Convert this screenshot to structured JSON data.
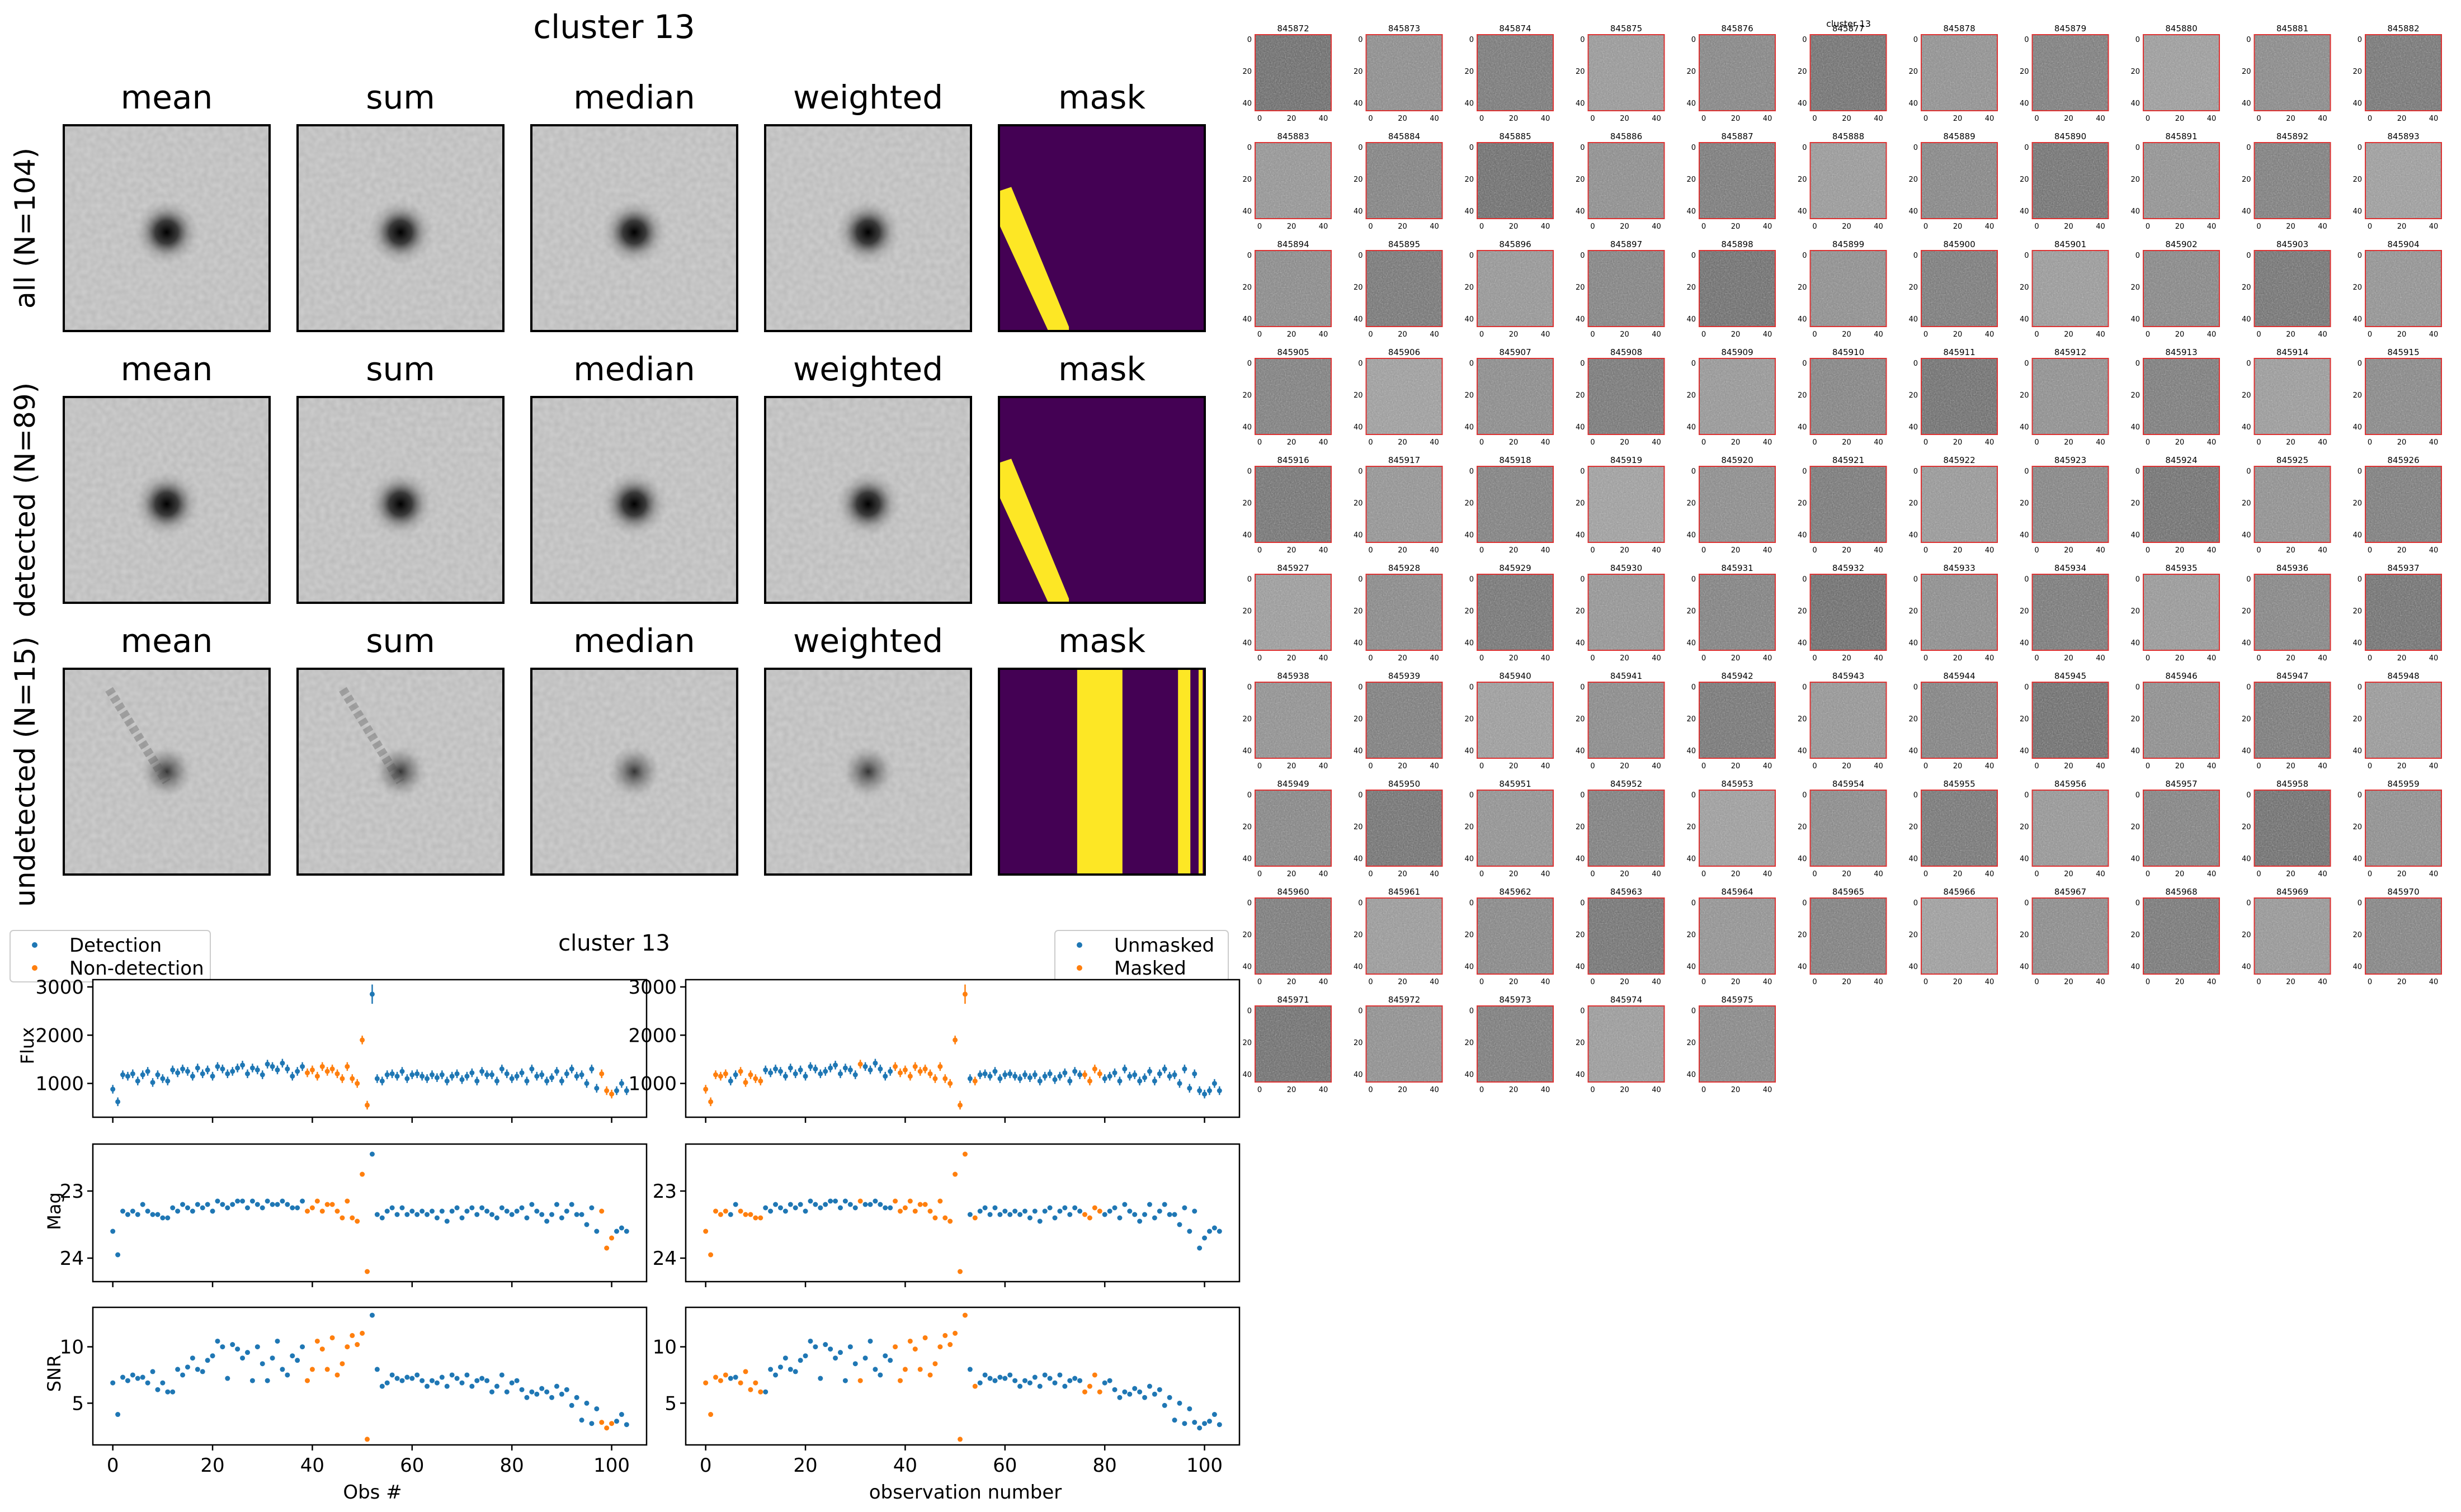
{
  "stamps": {
    "title": "cluster 13",
    "columns": [
      "mean",
      "sum",
      "median",
      "weighted",
      "mask"
    ],
    "rows": [
      {
        "label": "all (N=104)",
        "mask_bands": "diagonal"
      },
      {
        "label": "detected (N=89)",
        "mask_bands": "diagonal"
      },
      {
        "label": "undetected (N=15)",
        "mask_bands": [
          [
            0.38,
            0.6
          ],
          [
            0.87,
            0.93
          ],
          [
            0.97,
            0.99
          ]
        ]
      }
    ],
    "mask_colors": {
      "off": "#440154",
      "on": "#fde725"
    }
  },
  "lightcurve_title": "cluster 13",
  "grid": {
    "title": "cluster 13",
    "ids": [
      "845872",
      "845873",
      "845874",
      "845875",
      "845876",
      "845877",
      "845878",
      "845879",
      "845880",
      "845881",
      "845882",
      "845883",
      "845884",
      "845885",
      "845886",
      "845887",
      "845888",
      "845889",
      "845890",
      "845891",
      "845892",
      "845893",
      "845894",
      "845895",
      "845896",
      "845897",
      "845898",
      "845899",
      "845900",
      "845901",
      "845902",
      "845903",
      "845904",
      "845905",
      "845906",
      "845907",
      "845908",
      "845909",
      "845910",
      "845911",
      "845912",
      "845913",
      "845914",
      "845915",
      "845916",
      "845917",
      "845918",
      "845919",
      "845920",
      "845921",
      "845922",
      "845923",
      "845924",
      "845925",
      "845926",
      "845927",
      "845928",
      "845929",
      "845930",
      "845931",
      "845932",
      "845933",
      "845934",
      "845935",
      "845936",
      "845937",
      "845938",
      "845939",
      "845940",
      "845941",
      "845942",
      "845943",
      "845944",
      "845945",
      "845946",
      "845947",
      "845948",
      "845949",
      "845950",
      "845951",
      "845952",
      "845953",
      "845954",
      "845955",
      "845956",
      "845957",
      "845958",
      "845959",
      "845960",
      "845961",
      "845962",
      "845963",
      "845964",
      "845965",
      "845966",
      "845967",
      "845968",
      "845969",
      "845970",
      "845971",
      "845972",
      "845973",
      "845974",
      "845975"
    ],
    "y_ticks": [
      "0",
      "20",
      "40"
    ],
    "x_ticks": [
      "0",
      "20",
      "40"
    ]
  },
  "colors": {
    "blue": "#1f77b4",
    "orange": "#ff7f0e"
  },
  "chart_data": [
    {
      "type": "scatter",
      "name": "Flux vs observation (detection)",
      "ylabel": "Flux",
      "yticks": [
        1000,
        2000,
        3000
      ],
      "ylim": [
        300,
        3150
      ],
      "xlim": [
        -4,
        107
      ],
      "legend": {
        "entries": [
          "Detection",
          "Non-detection"
        ],
        "placement": "top-left outside"
      },
      "series_ref": "detection_split",
      "variable": "flux"
    },
    {
      "type": "scatter",
      "name": "Mag vs observation (detection)",
      "ylabel": "Mag",
      "yticks": [
        23,
        24
      ],
      "ylim": [
        24.35,
        22.3
      ],
      "inverted": true,
      "variable": "mag",
      "series_ref": "detection_split"
    },
    {
      "type": "scatter",
      "name": "SNR vs observation (detection)",
      "ylabel": "SNR",
      "xlabel": "Obs #",
      "yticks": [
        5,
        10
      ],
      "ylim": [
        1.3,
        13.5
      ],
      "xticks": [
        0,
        20,
        40,
        60,
        80,
        100
      ],
      "variable": "snr",
      "series_ref": "detection_split"
    },
    {
      "type": "scatter",
      "name": "Flux vs observation (mask)",
      "yticks": [
        1000,
        2000,
        3000
      ],
      "ylim": [
        300,
        3150
      ],
      "legend": {
        "entries": [
          "Unmasked",
          "Masked"
        ],
        "placement": "top-right outside"
      },
      "variable": "flux",
      "series_ref": "mask_split"
    },
    {
      "type": "scatter",
      "name": "Mag vs observation (mask)",
      "yticks": [
        23,
        24
      ],
      "ylim": [
        24.35,
        22.3
      ],
      "inverted": true,
      "variable": "mag",
      "series_ref": "mask_split"
    },
    {
      "type": "scatter",
      "name": "SNR vs observation (mask)",
      "xlabel": "observation number",
      "yticks": [
        5,
        10
      ],
      "ylim": [
        1.3,
        13.5
      ],
      "xticks": [
        0,
        20,
        40,
        60,
        80,
        100
      ],
      "variable": "snr",
      "series_ref": "mask_split"
    }
  ],
  "observations": {
    "x": [
      0,
      1,
      2,
      3,
      4,
      5,
      6,
      7,
      8,
      9,
      10,
      11,
      12,
      13,
      14,
      15,
      16,
      17,
      18,
      19,
      20,
      21,
      22,
      23,
      24,
      25,
      26,
      27,
      28,
      29,
      30,
      31,
      32,
      33,
      34,
      35,
      36,
      37,
      38,
      39,
      40,
      41,
      42,
      43,
      44,
      45,
      46,
      47,
      48,
      49,
      50,
      51,
      52,
      53,
      54,
      55,
      56,
      57,
      58,
      59,
      60,
      61,
      62,
      63,
      64,
      65,
      66,
      67,
      68,
      69,
      70,
      71,
      72,
      73,
      74,
      75,
      76,
      77,
      78,
      79,
      80,
      81,
      82,
      83,
      84,
      85,
      86,
      87,
      88,
      89,
      90,
      91,
      92,
      93,
      94,
      95,
      96,
      97,
      98,
      99,
      100,
      101,
      102,
      103
    ],
    "flux": [
      880,
      620,
      1180,
      1150,
      1200,
      1050,
      1180,
      1250,
      1020,
      1180,
      1100,
      1050,
      1280,
      1220,
      1300,
      1250,
      1150,
      1320,
      1200,
      1280,
      1150,
      1350,
      1300,
      1200,
      1250,
      1320,
      1380,
      1200,
      1320,
      1280,
      1180,
      1400,
      1350,
      1280,
      1420,
      1300,
      1150,
      1250,
      1350,
      1220,
      1280,
      1150,
      1350,
      1250,
      1300,
      1200,
      1100,
      1350,
      1100,
      1000,
      1900,
      550,
      2850,
      1100,
      1050,
      1180,
      1200,
      1150,
      1250,
      1100,
      1180,
      1200,
      1150,
      1100,
      1180,
      1120,
      1180,
      1050,
      1150,
      1200,
      1080,
      1150,
      1220,
      1050,
      1250,
      1180,
      1180,
      1050,
      1300,
      1200,
      1100,
      1150,
      1220,
      1050,
      1300,
      1150,
      1180,
      1050,
      1120,
      1250,
      1050,
      1200,
      1300,
      1150,
      1180,
      1000,
      1300,
      900,
      1200,
      850,
      780,
      850,
      1000,
      850
    ],
    "mag": [
      23.6,
      23.95,
      23.3,
      23.35,
      23.3,
      23.35,
      23.2,
      23.3,
      23.35,
      23.35,
      23.4,
      23.4,
      23.25,
      23.3,
      23.2,
      23.25,
      23.3,
      23.2,
      23.25,
      23.2,
      23.3,
      23.15,
      23.2,
      23.25,
      23.2,
      23.15,
      23.15,
      23.25,
      23.15,
      23.2,
      23.25,
      23.15,
      23.2,
      23.2,
      23.15,
      23.2,
      23.25,
      23.25,
      23.15,
      23.3,
      23.25,
      23.15,
      23.3,
      23.2,
      23.2,
      23.3,
      23.4,
      23.15,
      23.4,
      23.45,
      22.75,
      24.2,
      22.45,
      23.35,
      23.4,
      23.3,
      23.25,
      23.35,
      23.25,
      23.35,
      23.3,
      23.35,
      23.3,
      23.35,
      23.3,
      23.4,
      23.3,
      23.45,
      23.3,
      23.25,
      23.4,
      23.3,
      23.25,
      23.35,
      23.25,
      23.3,
      23.35,
      23.4,
      23.25,
      23.3,
      23.35,
      23.3,
      23.25,
      23.4,
      23.2,
      23.3,
      23.35,
      23.45,
      23.35,
      23.2,
      23.4,
      23.3,
      23.2,
      23.35,
      23.35,
      23.5,
      23.25,
      23.6,
      23.3,
      23.85,
      23.7,
      23.6,
      23.55,
      23.6
    ],
    "snr": [
      6.8,
      4.0,
      7.3,
      7.0,
      7.5,
      7.2,
      7.3,
      6.8,
      7.8,
      6.2,
      6.8,
      6.0,
      6.0,
      8.0,
      7.5,
      8.2,
      9.0,
      8.0,
      7.8,
      8.8,
      9.2,
      10.5,
      10.0,
      7.2,
      10.2,
      9.8,
      9.0,
      9.5,
      7.0,
      10.0,
      8.5,
      7.0,
      9.0,
      10.5,
      8.0,
      7.5,
      9.2,
      8.8,
      10.0,
      7.0,
      8.0,
      10.5,
      9.8,
      8.0,
      10.8,
      7.5,
      8.5,
      10.0,
      11.0,
      10.2,
      11.2,
      1.8,
      12.8,
      8.0,
      6.5,
      6.8,
      7.5,
      7.2,
      7.0,
      7.3,
      7.2,
      7.5,
      7.0,
      6.5,
      7.0,
      6.8,
      7.3,
      6.5,
      7.5,
      7.2,
      6.8,
      7.5,
      6.5,
      7.0,
      7.2,
      7.0,
      6.0,
      6.5,
      7.5,
      6.0,
      6.8,
      7.0,
      6.2,
      5.5,
      6.0,
      5.8,
      6.3,
      6.0,
      5.5,
      6.5,
      5.8,
      6.2,
      4.8,
      5.5,
      3.5,
      5.0,
      3.2,
      4.5,
      3.3,
      2.8,
      3.2,
      3.4,
      4.0,
      3.1
    ],
    "detected": [
      1,
      1,
      1,
      1,
      1,
      1,
      1,
      1,
      1,
      1,
      1,
      1,
      1,
      1,
      1,
      1,
      1,
      1,
      1,
      1,
      1,
      1,
      1,
      1,
      1,
      1,
      1,
      1,
      1,
      1,
      1,
      1,
      1,
      1,
      1,
      1,
      1,
      1,
      1,
      0,
      0,
      0,
      0,
      0,
      0,
      0,
      0,
      0,
      0,
      0,
      0,
      0,
      1,
      1,
      1,
      1,
      1,
      1,
      1,
      1,
      1,
      1,
      1,
      1,
      1,
      1,
      1,
      1,
      1,
      1,
      1,
      1,
      1,
      1,
      1,
      1,
      1,
      1,
      1,
      1,
      1,
      1,
      1,
      1,
      1,
      1,
      1,
      1,
      1,
      1,
      1,
      1,
      1,
      1,
      1,
      1,
      1,
      1,
      0,
      0,
      0,
      1,
      1,
      1
    ],
    "masked": [
      1,
      1,
      1,
      1,
      1,
      0,
      0,
      1,
      1,
      1,
      1,
      1,
      0,
      0,
      0,
      0,
      0,
      0,
      0,
      0,
      0,
      0,
      0,
      0,
      0,
      0,
      0,
      0,
      0,
      0,
      0,
      1,
      0,
      0,
      0,
      0,
      0,
      0,
      1,
      1,
      1,
      1,
      1,
      1,
      1,
      1,
      1,
      1,
      1,
      1,
      1,
      1,
      1,
      0,
      1,
      0,
      0,
      0,
      0,
      0,
      0,
      0,
      0,
      0,
      0,
      0,
      0,
      0,
      0,
      0,
      0,
      0,
      0,
      0,
      0,
      0,
      1,
      1,
      1,
      1,
      0,
      0,
      0,
      0,
      0,
      0,
      0,
      0,
      0,
      0,
      0,
      0,
      0,
      0,
      0,
      0,
      0,
      0,
      0,
      0,
      0,
      0,
      0,
      0
    ]
  },
  "legends": {
    "detection": {
      "first": "Detection",
      "second": "Non-detection"
    },
    "mask": {
      "first": "Unmasked",
      "second": "Masked"
    }
  },
  "axis_labels": {
    "flux": "Flux",
    "mag": "Mag",
    "snr": "SNR",
    "obs": "Obs #",
    "obsnum": "observation number"
  }
}
